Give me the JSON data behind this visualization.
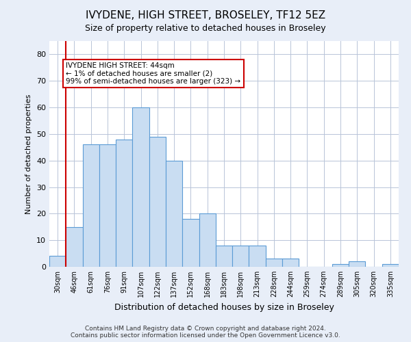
{
  "title": "IVYDENE, HIGH STREET, BROSELEY, TF12 5EZ",
  "subtitle": "Size of property relative to detached houses in Broseley",
  "xlabel": "Distribution of detached houses by size in Broseley",
  "ylabel": "Number of detached properties",
  "categories": [
    "30sqm",
    "46sqm",
    "61sqm",
    "76sqm",
    "91sqm",
    "107sqm",
    "122sqm",
    "137sqm",
    "152sqm",
    "168sqm",
    "183sqm",
    "198sqm",
    "213sqm",
    "228sqm",
    "244sqm",
    "259sqm",
    "274sqm",
    "289sqm",
    "305sqm",
    "320sqm",
    "335sqm"
  ],
  "values": [
    4,
    15,
    46,
    46,
    48,
    60,
    49,
    40,
    18,
    20,
    8,
    8,
    8,
    3,
    3,
    0,
    0,
    1,
    2,
    0,
    1
  ],
  "bar_color": "#c9ddf2",
  "bar_edge_color": "#5b9bd5",
  "annotation_box_text": "IVYDENE HIGH STREET: 44sqm\n← 1% of detached houses are smaller (2)\n99% of semi-detached houses are larger (323) →",
  "ylim": [
    0,
    85
  ],
  "yticks": [
    0,
    10,
    20,
    30,
    40,
    50,
    60,
    70,
    80
  ],
  "footer_line1": "Contains HM Land Registry data © Crown copyright and database right 2024.",
  "footer_line2": "Contains public sector information licensed under the Open Government Licence v3.0.",
  "background_color": "#e8eef8",
  "plot_bg_color": "#ffffff",
  "grid_color": "#b8c4d8",
  "annotation_line_color": "#cc0000",
  "annotation_box_edge_color": "#cc0000",
  "title_fontsize": 11,
  "subtitle_fontsize": 9
}
